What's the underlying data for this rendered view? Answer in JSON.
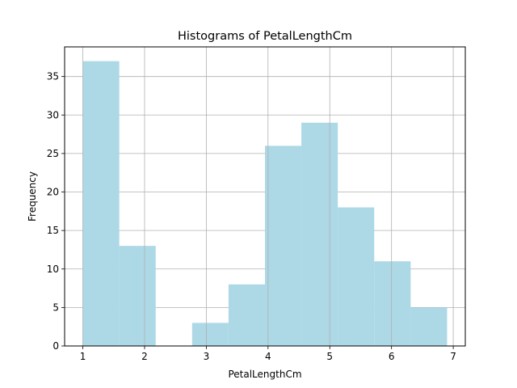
{
  "chart_data": {
    "type": "bar",
    "title": "Histograms of PetalLengthCm",
    "xlabel": "PetalLengthCm",
    "ylabel": "Frequency",
    "bins": [
      {
        "start": 1.0,
        "end": 1.59,
        "value": 37
      },
      {
        "start": 1.59,
        "end": 2.18,
        "value": 13
      },
      {
        "start": 2.18,
        "end": 2.77,
        "value": 0
      },
      {
        "start": 2.77,
        "end": 3.36,
        "value": 3
      },
      {
        "start": 3.36,
        "end": 3.95,
        "value": 8
      },
      {
        "start": 3.95,
        "end": 4.54,
        "value": 26
      },
      {
        "start": 4.54,
        "end": 5.13,
        "value": 29
      },
      {
        "start": 5.13,
        "end": 5.72,
        "value": 18
      },
      {
        "start": 5.72,
        "end": 6.31,
        "value": 11
      },
      {
        "start": 6.31,
        "end": 6.9,
        "value": 5
      }
    ],
    "xlim": [
      0.705,
      7.195
    ],
    "ylim": [
      0,
      38.85
    ],
    "xticks": [
      1,
      2,
      3,
      4,
      5,
      6,
      7
    ],
    "yticks": [
      0,
      5,
      10,
      15,
      20,
      25,
      30,
      35
    ],
    "grid": true,
    "bar_color": "#add8e6",
    "grid_color": "#b0b0b0"
  }
}
